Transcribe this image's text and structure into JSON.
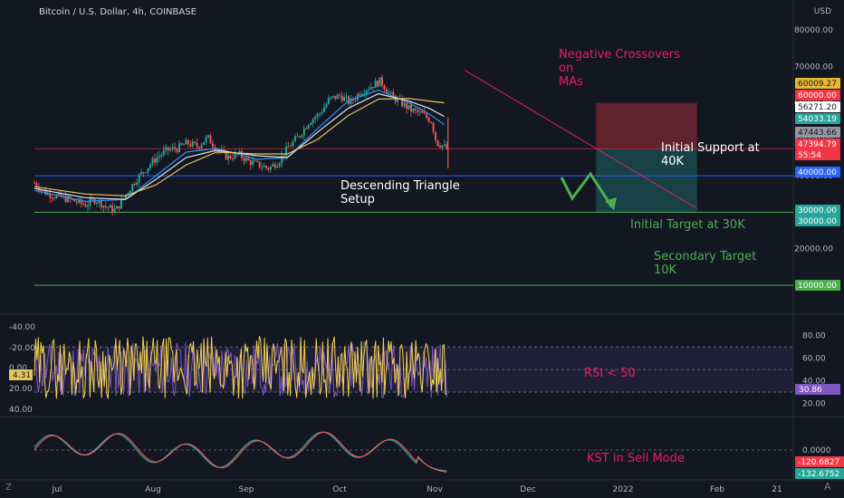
{
  "header": {
    "symbol_line": "Bitcoin / U.S. Dollar, 4h, COINBASE",
    "currency": "USD"
  },
  "colors": {
    "background": "#131722",
    "candle_up": "#26a69a",
    "candle_down": "#ef5350",
    "ma_fast": "#2196f3",
    "ma_mid": "#e0e3eb",
    "ma_slow": "#e6c45c",
    "rsi": "#7e57c2",
    "stoch": "#f0d04a",
    "kst": "#ef5350",
    "kst_signal": "#26a69a",
    "annotation_pink": "#e91e63",
    "annotation_green": "#4caf50"
  },
  "annotations": {
    "negative_crossovers": [
      "Negative Crossovers",
      "on",
      "MAs"
    ],
    "initial_support": [
      "Initial Support at",
      "40K"
    ],
    "descending_triangle": [
      "Descending Triangle",
      "Setup"
    ],
    "initial_target": "Initial Target at 30K",
    "secondary_target": [
      "Secondary Target",
      "10K"
    ],
    "rsi_note": "RSI < 50",
    "kst_note": "KST in Sell Mode"
  },
  "price_labels": [
    {
      "text": "60009.27",
      "bg": "#e6b832",
      "fg": "#131722"
    },
    {
      "text": "60000.00",
      "bg": "#f23645",
      "fg": "#ffffff"
    },
    {
      "text": "56271.20",
      "bg": "#ffffff",
      "fg": "#131722"
    },
    {
      "text": "54033.19",
      "bg": "#26a69a",
      "fg": "#ffffff"
    },
    {
      "text": "47443.66",
      "bg": "#9598a1",
      "fg": "#131722"
    },
    {
      "text": "47394.79",
      "bg": "#f23645",
      "fg": "#ffffff"
    },
    {
      "text": "55:54",
      "bg": "#f23645",
      "fg": "#ffffff"
    },
    {
      "text": "40000.00",
      "bg": "#2962ff",
      "fg": "#ffffff"
    },
    {
      "text": "30000.00",
      "bg": "#26a69a",
      "fg": "#ffffff"
    },
    {
      "text": "30000.00",
      "bg": "#26a69a",
      "fg": "#ffffff"
    },
    {
      "text": "10000.00",
      "bg": "#4caf50",
      "fg": "#ffffff"
    }
  ],
  "left_labels": {
    "rsi_axis": [
      "-40.00",
      "-20.00",
      "0.00",
      "20.00",
      "40.00"
    ],
    "current_badge": "4.31"
  },
  "rsi_labels": {
    "axis": [
      "80.00",
      "60.00",
      "40.00",
      "20.00"
    ],
    "badge": "30.86"
  },
  "kst_labels": {
    "axis": "0.0000",
    "badge1": "-120.6827",
    "badge2": "-132.6752"
  },
  "time_axis": [
    "Jul",
    "Aug",
    "Sep",
    "Oct",
    "Nov",
    "Dec",
    "2022",
    "Feb",
    "21"
  ],
  "chart_data": {
    "type": "line",
    "title": "Bitcoin / U.S. Dollar, 4h, COINBASE",
    "y_axis_ticks": [
      80000,
      70000,
      60000,
      50000,
      40000,
      30000,
      20000,
      10000
    ],
    "ylim": [
      8000,
      82000
    ],
    "x_ticks": [
      "Jul",
      "Aug",
      "Sep",
      "Oct",
      "Nov",
      "Dec",
      "2022",
      "Feb",
      "21"
    ],
    "series": [
      {
        "type": "candlestick-approx",
        "points": [
          [
            0,
            38000
          ],
          [
            4,
            35500
          ],
          [
            8,
            34500
          ],
          [
            12,
            33800
          ],
          [
            16,
            33000
          ],
          [
            20,
            32000
          ],
          [
            24,
            33500
          ],
          [
            28,
            31500
          ],
          [
            32,
            30500
          ],
          [
            36,
            35000
          ],
          [
            40,
            39000
          ],
          [
            44,
            42000
          ],
          [
            48,
            45000
          ],
          [
            52,
            47000
          ],
          [
            56,
            47500
          ],
          [
            60,
            49000
          ],
          [
            64,
            48000
          ],
          [
            68,
            50500
          ],
          [
            72,
            47000
          ],
          [
            76,
            45000
          ],
          [
            80,
            46000
          ],
          [
            84,
            44000
          ],
          [
            88,
            43000
          ],
          [
            92,
            42000
          ],
          [
            96,
            44000
          ],
          [
            100,
            48000
          ],
          [
            104,
            51000
          ],
          [
            108,
            55000
          ],
          [
            112,
            57000
          ],
          [
            116,
            61000
          ],
          [
            120,
            62000
          ],
          [
            124,
            60000
          ],
          [
            128,
            63000
          ],
          [
            132,
            64500
          ],
          [
            136,
            66000
          ],
          [
            140,
            62000
          ],
          [
            144,
            60000
          ],
          [
            148,
            58000
          ],
          [
            152,
            57000
          ],
          [
            156,
            55000
          ],
          [
            158,
            49000
          ],
          [
            160,
            48500
          ],
          [
            162,
            47400
          ]
        ]
      },
      {
        "name": "",
        "type": "ma",
        "points": [
          [
            0,
            36000
          ],
          [
            20,
            33000
          ],
          [
            36,
            33500
          ],
          [
            48,
            40000
          ],
          [
            60,
            46500
          ],
          [
            72,
            47500
          ],
          [
            88,
            44500
          ],
          [
            100,
            45000
          ],
          [
            112,
            53000
          ],
          [
            124,
            60500
          ],
          [
            136,
            63500
          ],
          [
            148,
            60000
          ],
          [
            156,
            57000
          ],
          [
            162,
            54033
          ]
        ]
      },
      {
        "name": "",
        "type": "ma",
        "points": [
          [
            0,
            36500
          ],
          [
            20,
            34000
          ],
          [
            36,
            33500
          ],
          [
            48,
            39000
          ],
          [
            60,
            45000
          ],
          [
            72,
            47000
          ],
          [
            88,
            45500
          ],
          [
            100,
            45000
          ],
          [
            112,
            52000
          ],
          [
            124,
            58500
          ],
          [
            136,
            62500
          ],
          [
            148,
            60500
          ],
          [
            156,
            58500
          ],
          [
            162,
            56271
          ]
        ]
      },
      {
        "name": "",
        "type": "ma",
        "points": [
          [
            0,
            37000
          ],
          [
            20,
            35000
          ],
          [
            36,
            34500
          ],
          [
            48,
            37500
          ],
          [
            60,
            43000
          ],
          [
            72,
            46500
          ],
          [
            88,
            46000
          ],
          [
            100,
            46000
          ],
          [
            112,
            50000
          ],
          [
            124,
            56500
          ],
          [
            136,
            61000
          ],
          [
            148,
            61200
          ],
          [
            156,
            60500
          ],
          [
            162,
            60009
          ]
        ]
      }
    ],
    "horizontal_levels": [
      60000,
      47394.79,
      40000,
      30000,
      10000
    ],
    "rsi_levels": [
      70,
      50,
      30
    ],
    "rsi_last": 30.86,
    "kst_last": -120.6827,
    "kst_signal_last": -132.6752
  }
}
